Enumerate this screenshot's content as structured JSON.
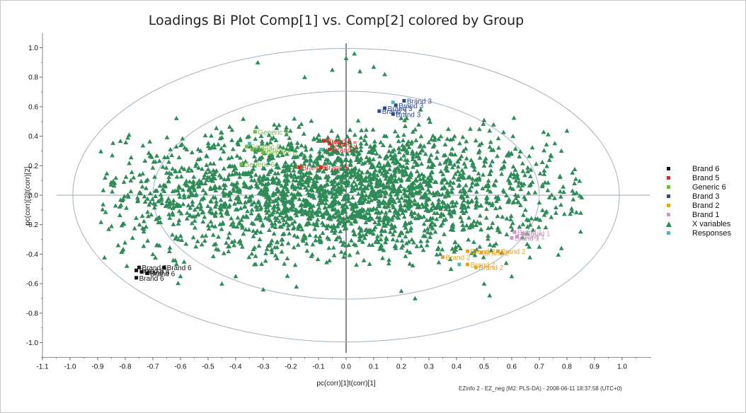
{
  "chart_data": {
    "type": "scatter",
    "title": "Loadings Bi Plot Comp[1] vs. Comp[2] colored by Group",
    "xlabel": "pc(corr)[1]t(corr)[1]",
    "ylabel": "pc(corr)[2]t(corr)[2]",
    "xlim": [
      -1.1,
      1.1
    ],
    "ylim": [
      -1.1,
      1.1
    ],
    "x_ticks": [
      "-1.1",
      "-1.0",
      "-0.9",
      "-0.8",
      "-0.7",
      "-0.6",
      "-0.5",
      "-0.4",
      "-0.3",
      "-0.2",
      "-0.1",
      "0.0",
      "0.1",
      "0.2",
      "0.3",
      "0.4",
      "0.5",
      "0.6",
      "0.7",
      "0.8",
      "0.9",
      "1.0"
    ],
    "y_ticks": [
      "1.0",
      "0.8",
      "0.6",
      "0.4",
      "0.2",
      "0.0",
      "-0.2",
      "-0.4",
      "-0.6",
      "-0.8",
      "-1.0"
    ],
    "ellipses": [
      {
        "label": "outer",
        "radius_x": 0.99,
        "radius_y": 0.995
      },
      {
        "label": "inner",
        "radius_x": 0.7,
        "radius_y": 0.705
      }
    ],
    "legend_position": "right",
    "series": [
      {
        "name": "Brand 6",
        "color": "#111111",
        "marker": "square",
        "points": [
          [
            -0.75,
            -0.49
          ],
          [
            -0.76,
            -0.51
          ],
          [
            -0.74,
            -0.52
          ],
          [
            -0.72,
            -0.53
          ],
          [
            -0.76,
            -0.56
          ],
          [
            -0.66,
            -0.49
          ]
        ],
        "labels": [
          "Brand 6",
          "Brand 6",
          "Brand 6",
          "Brand 6",
          "Brand 6",
          "Brand 6"
        ]
      },
      {
        "name": "Brand 5",
        "color": "#e0281e",
        "marker": "square",
        "points": [
          [
            -0.08,
            0.37
          ],
          [
            -0.06,
            0.35
          ],
          [
            -0.06,
            0.31
          ],
          [
            -0.17,
            0.19
          ],
          [
            -0.09,
            0.19
          ]
        ],
        "labels": [
          "Brand 5",
          "Brand 5",
          "Brand 5",
          "Brand 5",
          "Brand 5"
        ]
      },
      {
        "name": "Generic 6",
        "color": "#74b943",
        "marker": "square",
        "points": [
          [
            -0.33,
            0.43
          ],
          [
            -0.36,
            0.33
          ],
          [
            -0.34,
            0.31
          ],
          [
            -0.3,
            0.29
          ],
          [
            -0.38,
            0.21
          ]
        ],
        "labels": [
          "Generic 6",
          "Generic 6",
          "Generic 6",
          "Generic 6",
          "Generic 6"
        ]
      },
      {
        "name": "Brand 3",
        "color": "#2e4a8c",
        "marker": "square",
        "points": [
          [
            0.21,
            0.64
          ],
          [
            0.18,
            0.61
          ],
          [
            0.14,
            0.59
          ],
          [
            0.12,
            0.57
          ],
          [
            0.17,
            0.55
          ]
        ],
        "labels": [
          "Brand 3",
          "Brand 3",
          "Brand 3",
          "Brand 3",
          "Brand 3"
        ]
      },
      {
        "name": "Brand 2",
        "color": "#e8a41e",
        "marker": "square",
        "points": [
          [
            0.44,
            -0.38
          ],
          [
            0.49,
            -0.39
          ],
          [
            0.55,
            -0.38
          ],
          [
            0.35,
            -0.42
          ],
          [
            0.44,
            -0.47
          ],
          [
            0.47,
            -0.49
          ]
        ],
        "labels": [
          "Brand 2",
          "Brand 2",
          "Brand 2",
          "Brand 2",
          "Brand 2",
          "Brand 2"
        ]
      },
      {
        "name": "Brand 1",
        "color": "#c79ac1",
        "marker": "square",
        "points": [
          [
            0.61,
            -0.25
          ],
          [
            0.64,
            -0.26
          ],
          [
            0.62,
            -0.28
          ],
          [
            0.6,
            -0.29
          ]
        ],
        "labels": [
          "Brand 1",
          "Brand 1",
          "Brand 1",
          "Brand 1"
        ]
      },
      {
        "name": "X variables",
        "color": "#2f8b57",
        "marker": "triangle",
        "distribution": {
          "count": 2600,
          "center": [
            -0.02,
            0.02
          ],
          "spread_x": 0.38,
          "spread_y": 0.21
        },
        "outliers": [
          [
            -0.86,
            -0.23
          ],
          [
            -0.85,
            -0.21
          ],
          [
            -0.78,
            0.1
          ],
          [
            -0.77,
            0.12
          ],
          [
            -0.7,
            -0.4
          ],
          [
            -0.64,
            -0.38
          ],
          [
            -0.6,
            -0.55
          ],
          [
            -0.58,
            -0.33
          ],
          [
            -0.45,
            -0.6
          ],
          [
            -0.4,
            -0.55
          ],
          [
            -0.3,
            -0.64
          ],
          [
            -0.18,
            -0.62
          ],
          [
            -0.32,
            0.9
          ],
          [
            -0.15,
            0.8
          ],
          [
            -0.05,
            0.85
          ],
          [
            0.0,
            0.93
          ],
          [
            0.03,
            0.96
          ],
          [
            0.05,
            0.84
          ],
          [
            0.1,
            0.87
          ],
          [
            0.14,
            0.82
          ],
          [
            0.27,
            0.58
          ],
          [
            0.3,
            0.52
          ],
          [
            0.45,
            0.45
          ],
          [
            0.5,
            0.2
          ],
          [
            0.7,
            -0.05
          ],
          [
            0.76,
            -0.12
          ],
          [
            0.85,
            -0.12
          ],
          [
            0.82,
            0.03
          ],
          [
            0.7,
            -0.35
          ],
          [
            0.78,
            -0.36
          ],
          [
            0.6,
            -0.55
          ],
          [
            0.5,
            -0.6
          ],
          [
            0.52,
            -0.68
          ],
          [
            0.25,
            -0.7
          ],
          [
            0.2,
            -0.65
          ],
          [
            0.58,
            -0.46
          ],
          [
            0.38,
            -0.5
          ]
        ]
      },
      {
        "name": "Responses",
        "color": "#4cb8c8",
        "marker": "square",
        "points": [
          [
            0.17,
            0.63
          ],
          [
            -0.09,
            0.31
          ],
          [
            0.41,
            -0.47
          ],
          [
            -0.35,
            0.35
          ]
        ]
      }
    ]
  },
  "footer": "EZinfo 2 - EZ_neg (M2: PLS-DA) - 2008-06-11 18:37:58 (UTC+0)"
}
